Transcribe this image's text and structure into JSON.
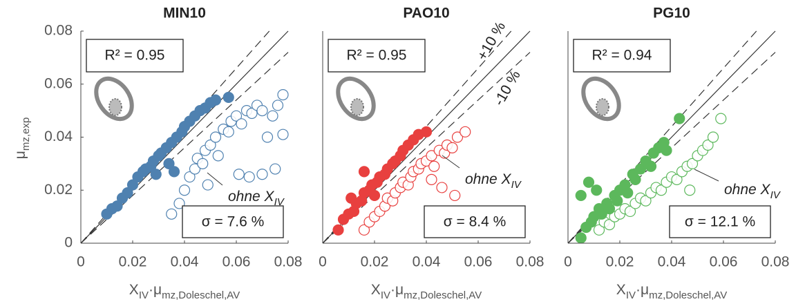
{
  "chart_data": [
    {
      "type": "scatter",
      "title": "MIN10",
      "ylabel_parts": [
        {
          "text": "μ"
        },
        {
          "text": "mz,exp",
          "sub": true
        }
      ],
      "xlabel_parts": [
        {
          "text": "X"
        },
        {
          "text": "IV",
          "sub": true
        },
        {
          "text": "·"
        },
        {
          "text": "μ"
        },
        {
          "text": "mz,Doleschel,AV",
          "sub": true
        }
      ],
      "xlim": [
        0,
        0.08
      ],
      "ylim": [
        0,
        0.08
      ],
      "xticks": [
        0,
        0.02,
        0.04,
        0.06,
        0.08
      ],
      "yticks": [
        0,
        0.02,
        0.04,
        0.06,
        0.08
      ],
      "reference_lines": [
        {
          "slope": 1,
          "style": "solid"
        },
        {
          "slope": 1.1,
          "style": "dashed"
        },
        {
          "slope": 0.9,
          "style": "dashed"
        }
      ],
      "r2_label": "R² = 0.95",
      "sigma_label": "σ = 7.6 %",
      "ohne_label": "ohne X",
      "ohne_sub": "IV",
      "series": [
        {
          "color": "#4f81b0",
          "filled": true,
          "x": [
            0.01,
            0.012,
            0.014,
            0.016,
            0.018,
            0.02,
            0.022,
            0.024,
            0.025,
            0.027,
            0.028,
            0.03,
            0.031,
            0.033,
            0.035,
            0.037,
            0.039,
            0.04,
            0.042,
            0.044,
            0.046,
            0.048,
            0.05,
            0.052,
            0.057,
            0.036,
            0.034,
            0.029
          ],
          "values": [
            0.011,
            0.013,
            0.014,
            0.017,
            0.019,
            0.022,
            0.025,
            0.027,
            0.028,
            0.029,
            0.031,
            0.033,
            0.034,
            0.036,
            0.038,
            0.04,
            0.042,
            0.044,
            0.046,
            0.048,
            0.05,
            0.051,
            0.053,
            0.054,
            0.055,
            0.027,
            0.03,
            0.026
          ]
        },
        {
          "color": "#4f81b0",
          "filled": false,
          "x": [
            0.035,
            0.038,
            0.04,
            0.042,
            0.044,
            0.045,
            0.047,
            0.048,
            0.05,
            0.052,
            0.053,
            0.055,
            0.057,
            0.058,
            0.06,
            0.062,
            0.064,
            0.066,
            0.068,
            0.07,
            0.072,
            0.074,
            0.076,
            0.078,
            0.078,
            0.065,
            0.07,
            0.075,
            0.061,
            0.049
          ],
          "values": [
            0.011,
            0.015,
            0.02,
            0.025,
            0.028,
            0.032,
            0.03,
            0.035,
            0.037,
            0.04,
            0.033,
            0.043,
            0.042,
            0.046,
            0.048,
            0.045,
            0.05,
            0.049,
            0.052,
            0.05,
            0.04,
            0.048,
            0.052,
            0.056,
            0.041,
            0.025,
            0.026,
            0.028,
            0.026,
            0.022
          ]
        }
      ]
    },
    {
      "type": "scatter",
      "title": "PAO10",
      "xlabel_parts": [
        {
          "text": "X"
        },
        {
          "text": "IV",
          "sub": true
        },
        {
          "text": "·"
        },
        {
          "text": "μ"
        },
        {
          "text": "mz,Doleschel,AV",
          "sub": true
        }
      ],
      "xlim": [
        0,
        0.08
      ],
      "ylim": [
        0,
        0.08
      ],
      "xticks": [
        0,
        0.02,
        0.04,
        0.06,
        0.08
      ],
      "reference_lines": [
        {
          "slope": 1,
          "style": "solid"
        },
        {
          "slope": 1.1,
          "style": "dashed"
        },
        {
          "slope": 0.9,
          "style": "dashed"
        }
      ],
      "annotations": [
        "+10 %",
        "-10 %"
      ],
      "r2_label": "R² = 0.95",
      "sigma_label": "σ = 8.4 %",
      "ohne_label": "ohne X",
      "ohne_sub": "IV",
      "series": [
        {
          "color": "#e8403f",
          "filled": true,
          "x": [
            0.006,
            0.008,
            0.01,
            0.012,
            0.013,
            0.015,
            0.016,
            0.018,
            0.019,
            0.021,
            0.022,
            0.024,
            0.025,
            0.027,
            0.028,
            0.03,
            0.031,
            0.033,
            0.035,
            0.037,
            0.04,
            0.016,
            0.011,
            0.02
          ],
          "values": [
            0.005,
            0.009,
            0.011,
            0.012,
            0.015,
            0.016,
            0.019,
            0.02,
            0.022,
            0.023,
            0.025,
            0.026,
            0.028,
            0.03,
            0.031,
            0.033,
            0.035,
            0.037,
            0.039,
            0.041,
            0.042,
            0.027,
            0.017,
            0.018
          ]
        },
        {
          "color": "#e8403f",
          "filled": false,
          "x": [
            0.016,
            0.018,
            0.02,
            0.022,
            0.024,
            0.025,
            0.027,
            0.028,
            0.03,
            0.031,
            0.033,
            0.034,
            0.035,
            0.037,
            0.038,
            0.04,
            0.042,
            0.043,
            0.045,
            0.047,
            0.048,
            0.05,
            0.052,
            0.055,
            0.046,
            0.051,
            0.042
          ],
          "values": [
            0.005,
            0.008,
            0.01,
            0.012,
            0.014,
            0.017,
            0.016,
            0.019,
            0.021,
            0.023,
            0.022,
            0.025,
            0.027,
            0.028,
            0.03,
            0.031,
            0.033,
            0.029,
            0.035,
            0.034,
            0.037,
            0.036,
            0.04,
            0.042,
            0.021,
            0.018,
            0.024
          ]
        }
      ]
    },
    {
      "type": "scatter",
      "title": "PG10",
      "xlabel_parts": [
        {
          "text": "X"
        },
        {
          "text": "IV",
          "sub": true
        },
        {
          "text": "·"
        },
        {
          "text": "μ"
        },
        {
          "text": "mz,Doleschel,AV",
          "sub": true
        }
      ],
      "xlim": [
        0,
        0.08
      ],
      "ylim": [
        0,
        0.08
      ],
      "xticks": [
        0,
        0.02,
        0.04,
        0.06,
        0.08
      ],
      "reference_lines": [
        {
          "slope": 1,
          "style": "solid"
        },
        {
          "slope": 1.1,
          "style": "dashed"
        },
        {
          "slope": 0.9,
          "style": "dashed"
        }
      ],
      "r2_label": "R² = 0.94",
      "sigma_label": "σ = 12.1 %",
      "ohne_label": "ohne X",
      "ohne_sub": "IV",
      "series": [
        {
          "color": "#5cb85c",
          "filled": true,
          "x": [
            0.005,
            0.007,
            0.009,
            0.01,
            0.012,
            0.013,
            0.015,
            0.016,
            0.018,
            0.019,
            0.02,
            0.022,
            0.023,
            0.025,
            0.026,
            0.028,
            0.03,
            0.032,
            0.033,
            0.035,
            0.037,
            0.038,
            0.043,
            0.008,
            0.011,
            0.005
          ],
          "values": [
            0.002,
            0.006,
            0.008,
            0.01,
            0.013,
            0.011,
            0.015,
            0.013,
            0.018,
            0.016,
            0.02,
            0.022,
            0.019,
            0.026,
            0.024,
            0.028,
            0.031,
            0.029,
            0.034,
            0.036,
            0.038,
            0.035,
            0.047,
            0.023,
            0.02,
            0.018
          ]
        },
        {
          "color": "#5cb85c",
          "filled": false,
          "x": [
            0.012,
            0.014,
            0.016,
            0.018,
            0.02,
            0.022,
            0.024,
            0.026,
            0.028,
            0.03,
            0.032,
            0.034,
            0.036,
            0.038,
            0.04,
            0.042,
            0.044,
            0.046,
            0.048,
            0.05,
            0.052,
            0.054,
            0.056,
            0.059,
            0.047
          ],
          "values": [
            0.005,
            0.008,
            0.007,
            0.01,
            0.011,
            0.013,
            0.012,
            0.015,
            0.017,
            0.016,
            0.019,
            0.021,
            0.02,
            0.023,
            0.025,
            0.024,
            0.027,
            0.029,
            0.03,
            0.033,
            0.035,
            0.037,
            0.04,
            0.047,
            0.02
          ]
        }
      ]
    }
  ]
}
